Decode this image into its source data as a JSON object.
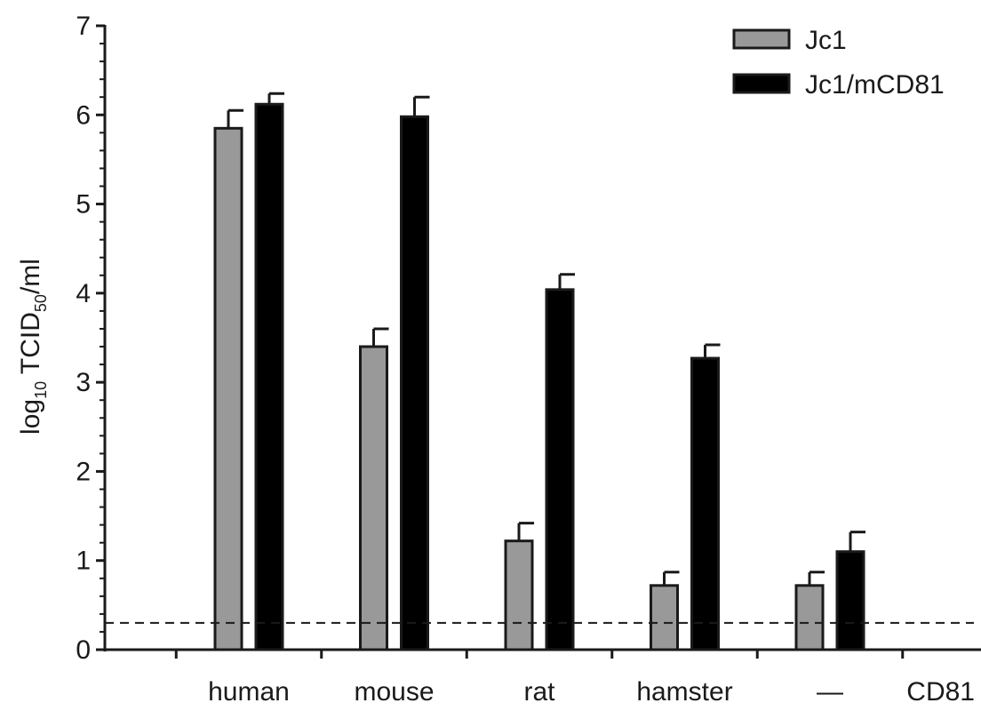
{
  "chart_data": {
    "type": "bar",
    "categories": [
      "human",
      "mouse",
      "rat",
      "hamster",
      "—"
    ],
    "category_axis_label": "CD81",
    "series": [
      {
        "name": "Jc1",
        "color": "#999999",
        "values": [
          5.85,
          3.4,
          1.22,
          0.72,
          0.72
        ],
        "errors": [
          0.2,
          0.2,
          0.2,
          0.15,
          0.15
        ]
      },
      {
        "name": "Jc1/mCD81",
        "color": "#000000",
        "values": [
          6.12,
          5.98,
          4.04,
          3.27,
          1.1
        ],
        "errors": [
          0.12,
          0.22,
          0.17,
          0.15,
          0.22
        ]
      }
    ],
    "ylabel": {
      "main": "log",
      "sub1": "10",
      "mid": " TCID",
      "sub2": "50",
      "tail": "/ml"
    },
    "ylim": [
      0,
      7
    ],
    "yticks": [
      0,
      1,
      2,
      3,
      4,
      5,
      6,
      7
    ],
    "detection_limit": 0.3,
    "legend_position": "top-right",
    "grid": false
  }
}
